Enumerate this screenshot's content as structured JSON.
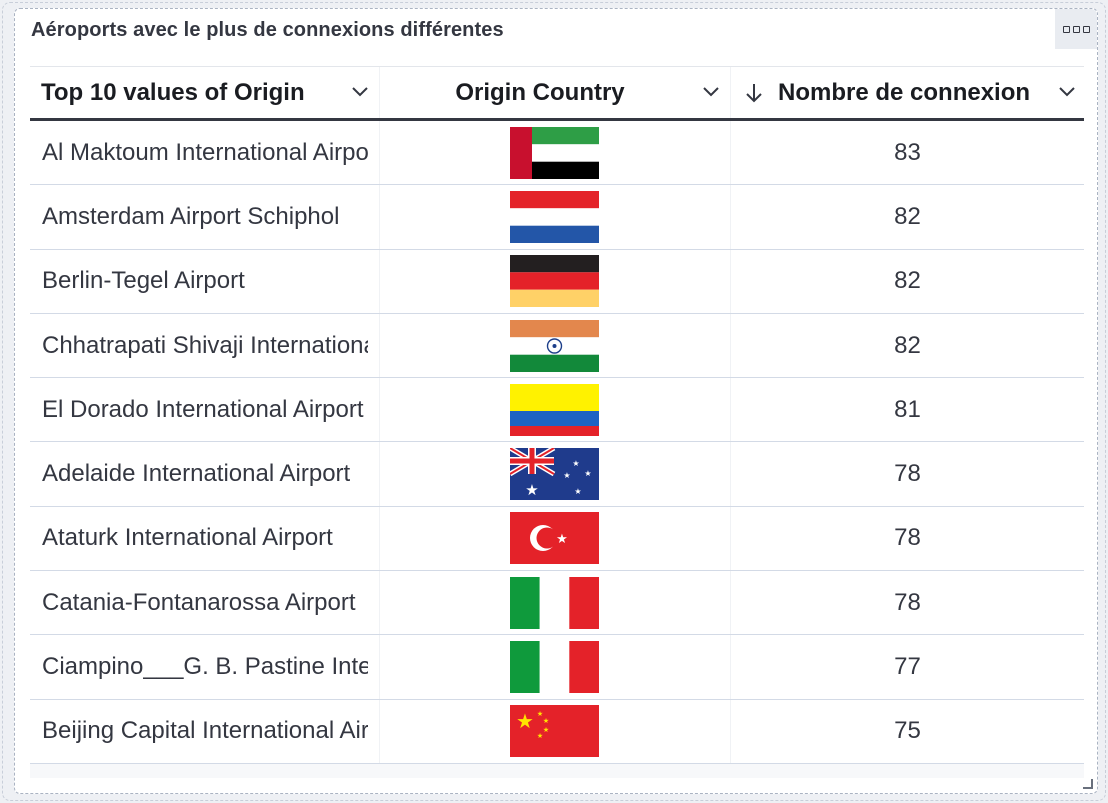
{
  "panel": {
    "title": "Aéroports avec le plus de connexions différentes"
  },
  "table": {
    "columns": [
      {
        "label": "Top 10 values of Origin"
      },
      {
        "label": "Origin Country"
      },
      {
        "label": "Nombre de connexion",
        "sort": "descending"
      }
    ],
    "rows": [
      {
        "origin": "Al Maktoum International Airport",
        "country_flag": "united-arab-emirates-flag",
        "count": "83"
      },
      {
        "origin": "Amsterdam Airport Schiphol",
        "country_flag": "netherlands-flag",
        "count": "82"
      },
      {
        "origin": "Berlin-Tegel Airport",
        "country_flag": "germany-flag",
        "count": "82"
      },
      {
        "origin": "Chhatrapati Shivaji International Airport",
        "country_flag": "india-flag",
        "count": "82"
      },
      {
        "origin": "El Dorado International Airport",
        "country_flag": "colombia-flag",
        "count": "81"
      },
      {
        "origin": "Adelaide International Airport",
        "country_flag": "australia-flag",
        "count": "78"
      },
      {
        "origin": "Ataturk International Airport",
        "country_flag": "turkey-flag",
        "count": "78"
      },
      {
        "origin": "Catania-Fontanarossa Airport",
        "country_flag": "italy-flag",
        "count": "78"
      },
      {
        "origin": "Ciampino___G. B. Pastine International Airport",
        "country_flag": "italy-flag",
        "count": "77"
      },
      {
        "origin": "Beijing Capital International Airport",
        "country_flag": "china-flag",
        "count": "75"
      }
    ]
  },
  "colors": {
    "header_text": "#1a1c21",
    "cell_text": "#343741",
    "row_border": "#d3dae6"
  }
}
